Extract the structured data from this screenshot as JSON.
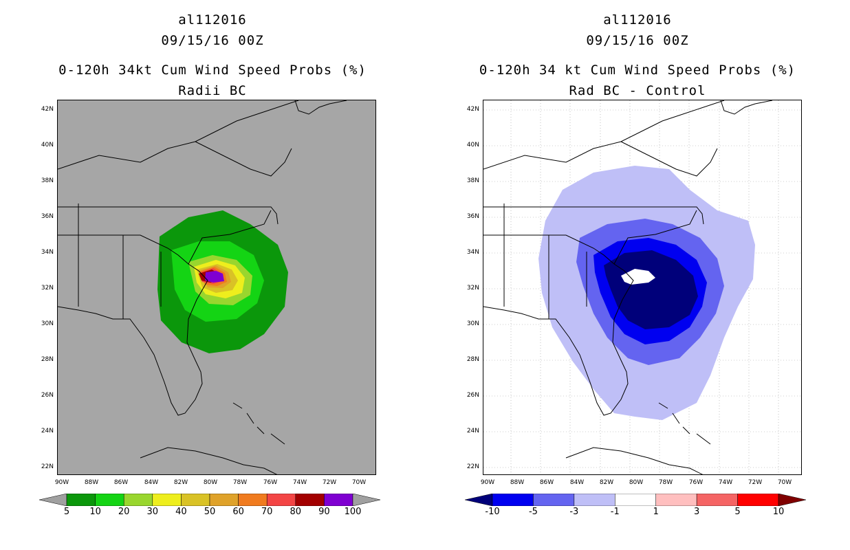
{
  "left_panel": {
    "storm_id": "al112016",
    "datetime": "09/15/16 00Z",
    "title": "0-120h 34kt Cum Wind Speed Probs (%)",
    "subtitle": "Radii BC",
    "background_color": "#a6a6a6",
    "colorbar": {
      "labels": [
        "5",
        "10",
        "20",
        "30",
        "40",
        "50",
        "60",
        "70",
        "80",
        "90",
        "100"
      ],
      "colors": [
        "#a0a0a0",
        "#0b970b",
        "#14d414",
        "#99d62e",
        "#eeee1d",
        "#d9c226",
        "#dfa22a",
        "#f07b1f",
        "#f34545",
        "#a30000",
        "#7f00d1",
        "#a0a0a0"
      ]
    }
  },
  "right_panel": {
    "storm_id": "al112016",
    "datetime": "09/15/16 00Z",
    "title": "0-120h 34 kt Cum Wind Speed Probs (%)",
    "subtitle": "Rad BC - Control",
    "background_color": "#ffffff",
    "colorbar": {
      "labels": [
        "-10",
        "-5",
        "-3",
        "-1",
        "1",
        "3",
        "5",
        "10"
      ],
      "colors": [
        "#00007a",
        "#0000f0",
        "#6464f0",
        "#bfbff7",
        "#ffffff",
        "#ffbfbf",
        "#f56464",
        "#ff0000",
        "#800000"
      ]
    }
  },
  "axes": {
    "lat_labels": [
      "42N",
      "40N",
      "38N",
      "36N",
      "34N",
      "32N",
      "30N",
      "28N",
      "26N",
      "24N",
      "22N"
    ],
    "lon_labels": [
      "90W",
      "88W",
      "86W",
      "84W",
      "82W",
      "80W",
      "78W",
      "76W",
      "74W",
      "72W",
      "70W"
    ],
    "lat_range": [
      21.5,
      42.5
    ],
    "lon_range": [
      -90,
      -69
    ]
  }
}
